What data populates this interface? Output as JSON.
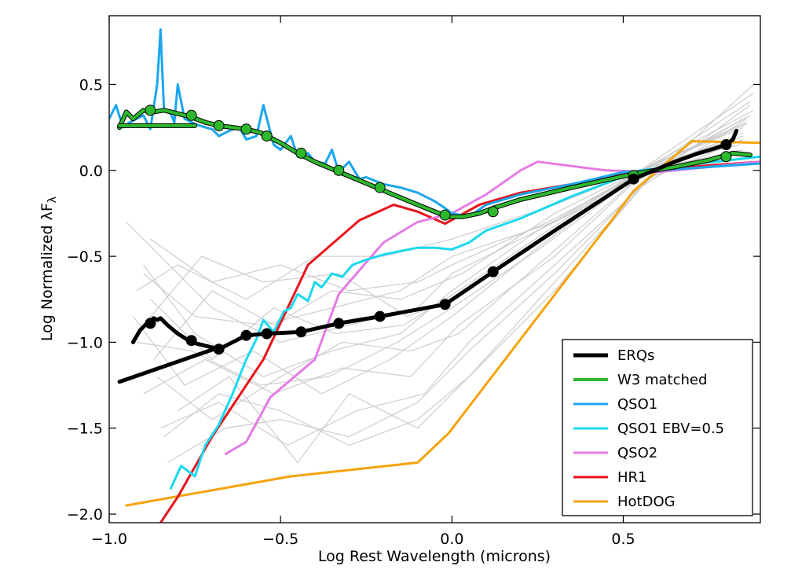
{
  "chart_data": {
    "type": "line",
    "title": "",
    "xlabel": "Log Rest Wavelength (microns)",
    "ylabel_main": "Log Normalized λF",
    "ylabel_sub": "λ",
    "xlim": [
      -1.0,
      0.9
    ],
    "ylim": [
      -2.05,
      0.9
    ],
    "xticks": [
      -1.0,
      -0.5,
      0.0,
      0.5
    ],
    "xtick_labels": [
      "−1.0",
      "−0.5",
      "0.0",
      "0.5"
    ],
    "yticks": [
      -2.0,
      -1.5,
      -1.0,
      -0.5,
      0.0,
      0.5
    ],
    "ytick_labels": [
      "−2.0",
      "−1.5",
      "−1.0",
      "−0.5",
      "0.0",
      "0.5"
    ],
    "grid": false,
    "legend_position": "bottom-right",
    "series": [
      {
        "name": "HotDOG",
        "color": "#f5a30a",
        "width": 3,
        "x": [
          -0.95,
          -0.47,
          -0.1,
          -0.01,
          0.47,
          0.53,
          0.7,
          0.9
        ],
        "y": [
          -1.95,
          -1.78,
          -1.7,
          -1.53,
          -0.28,
          -0.12,
          0.17,
          0.16
        ]
      },
      {
        "name": "HR1",
        "color": "#e8141b",
        "width": 3,
        "x": [
          -0.9,
          -0.8,
          -0.7,
          -0.55,
          -0.42,
          -0.27,
          -0.17,
          -0.1,
          -0.02,
          0.08,
          0.2,
          0.35,
          0.55,
          0.9
        ],
        "y": [
          -2.2,
          -1.9,
          -1.55,
          -1.1,
          -0.55,
          -0.29,
          -0.2,
          -0.24,
          -0.31,
          -0.2,
          -0.13,
          -0.08,
          0.0,
          0.05
        ]
      },
      {
        "name": "QSO2",
        "color": "#e57ce5",
        "width": 3,
        "x": [
          -0.66,
          -0.6,
          -0.53,
          -0.4,
          -0.33,
          -0.2,
          -0.1,
          0.0,
          0.1,
          0.2,
          0.25,
          0.45,
          0.6,
          0.9
        ],
        "y": [
          -1.65,
          -1.58,
          -1.32,
          -1.1,
          -0.72,
          -0.42,
          -0.3,
          -0.25,
          -0.14,
          0.0,
          0.05,
          0.0,
          -0.01,
          0.05
        ]
      },
      {
        "name": "QSO1 EBV=0.5",
        "color": "#1ad8f0",
        "width": 3,
        "x": [
          -0.82,
          -0.79,
          -0.75,
          -0.72,
          -0.68,
          -0.64,
          -0.6,
          -0.57,
          -0.55,
          -0.52,
          -0.49,
          -0.47,
          -0.45,
          -0.42,
          -0.4,
          -0.38,
          -0.35,
          -0.32,
          -0.29,
          -0.25,
          -0.2,
          -0.15,
          -0.1,
          -0.05,
          0.0,
          0.05,
          0.1,
          0.2,
          0.35,
          0.55,
          0.9
        ],
        "y": [
          -1.85,
          -1.72,
          -1.78,
          -1.6,
          -1.48,
          -1.3,
          -1.1,
          -0.98,
          -0.87,
          -0.94,
          -0.82,
          -0.8,
          -0.72,
          -0.76,
          -0.65,
          -0.68,
          -0.6,
          -0.62,
          -0.55,
          -0.52,
          -0.49,
          -0.47,
          -0.45,
          -0.45,
          -0.46,
          -0.42,
          -0.35,
          -0.28,
          -0.15,
          0.0,
          0.08
        ]
      },
      {
        "name": "QSO1",
        "color": "#1aa6ee",
        "width": 3,
        "x": [
          -1.0,
          -0.98,
          -0.96,
          -0.94,
          -0.92,
          -0.9,
          -0.88,
          -0.86,
          -0.85,
          -0.84,
          -0.82,
          -0.81,
          -0.8,
          -0.78,
          -0.75,
          -0.72,
          -0.7,
          -0.68,
          -0.65,
          -0.62,
          -0.6,
          -0.57,
          -0.55,
          -0.52,
          -0.5,
          -0.47,
          -0.45,
          -0.42,
          -0.4,
          -0.37,
          -0.35,
          -0.33,
          -0.3,
          -0.27,
          -0.25,
          -0.2,
          -0.15,
          -0.1,
          -0.05,
          -0.02,
          0.0,
          0.05,
          0.1,
          0.2,
          0.35,
          0.5,
          0.6,
          0.9
        ],
        "y": [
          0.3,
          0.38,
          0.25,
          0.28,
          0.3,
          0.32,
          0.24,
          0.5,
          0.82,
          0.35,
          0.33,
          0.28,
          0.5,
          0.3,
          0.27,
          0.25,
          0.24,
          0.2,
          0.23,
          0.25,
          0.18,
          0.2,
          0.38,
          0.15,
          0.12,
          0.2,
          0.08,
          0.1,
          0.05,
          0.04,
          0.12,
          -0.01,
          0.05,
          -0.05,
          -0.04,
          -0.08,
          -0.1,
          -0.13,
          -0.18,
          -0.22,
          -0.25,
          -0.27,
          -0.2,
          -0.14,
          -0.08,
          -0.01,
          0.0,
          0.04
        ]
      },
      {
        "name": "W3 matched",
        "color": "#2eb82e",
        "width": 4,
        "x": [
          -0.97,
          -0.95,
          -0.93,
          -0.9,
          -0.87,
          -0.84,
          -0.8,
          -0.76,
          -0.72,
          -0.68,
          -0.64,
          -0.6,
          -0.56,
          -0.54,
          -0.5,
          -0.45,
          -0.4,
          -0.34,
          -0.28,
          -0.22,
          -0.16,
          -0.1,
          -0.05,
          -0.01,
          0.03,
          0.08,
          0.12,
          0.2,
          0.35,
          0.53,
          0.65,
          0.75,
          0.82,
          0.87
        ],
        "y": [
          0.25,
          0.34,
          0.3,
          0.35,
          0.34,
          0.35,
          0.33,
          0.31,
          0.28,
          0.26,
          0.25,
          0.24,
          0.22,
          0.2,
          0.16,
          0.1,
          0.05,
          0.0,
          -0.05,
          -0.1,
          -0.15,
          -0.2,
          -0.24,
          -0.27,
          -0.27,
          -0.25,
          -0.22,
          -0.17,
          -0.1,
          -0.02,
          0.02,
          0.06,
          0.1,
          0.09
        ]
      },
      {
        "name": "W3 matched (extension)",
        "color": "#2eb82e",
        "width": 4,
        "x": [
          -0.97,
          -0.75
        ],
        "y": [
          0.26,
          0.26
        ]
      },
      {
        "name": "ERQs",
        "color": "#000000",
        "width": 5,
        "x": [
          -0.93,
          -0.91,
          -0.89,
          -0.88,
          -0.87,
          -0.86,
          -0.85,
          -0.83,
          -0.8,
          -0.76,
          -0.72,
          -0.68,
          -0.6,
          -0.54,
          -0.44,
          -0.33,
          -0.21,
          -0.02,
          0.12,
          0.3,
          0.53,
          0.65,
          0.72,
          0.77,
          0.8,
          0.82,
          0.83
        ],
        "y": [
          -1.0,
          -0.93,
          -0.89,
          -0.88,
          -0.86,
          -0.87,
          -0.86,
          -0.9,
          -0.95,
          -1.0,
          -1.02,
          -1.04,
          -0.96,
          -0.95,
          -0.94,
          -0.89,
          -0.85,
          -0.78,
          -0.59,
          -0.35,
          -0.05,
          0.05,
          0.1,
          0.13,
          0.15,
          0.18,
          0.23
        ]
      },
      {
        "name": "ERQs (extension)",
        "color": "#000000",
        "width": 5,
        "x": [
          -0.97,
          -0.68
        ],
        "y": [
          -1.23,
          -1.03
        ]
      }
    ],
    "markers": [
      {
        "series": "W3 matched",
        "color": "#2eb82e",
        "x": [
          -0.88,
          -0.76,
          -0.68,
          -0.6,
          -0.54,
          -0.44,
          -0.33,
          -0.21,
          -0.02,
          0.12,
          0.53,
          0.8
        ],
        "y": [
          0.35,
          0.32,
          0.26,
          0.24,
          0.2,
          0.1,
          0.0,
          -0.1,
          -0.26,
          -0.24,
          -0.03,
          0.08
        ]
      },
      {
        "series": "ERQs",
        "color": "#000000",
        "x": [
          -0.88,
          -0.76,
          -0.68,
          -0.6,
          -0.54,
          -0.44,
          -0.33,
          -0.21,
          -0.02,
          0.12,
          0.53,
          0.8
        ],
        "y": [
          -0.89,
          -0.99,
          -1.04,
          -0.96,
          -0.95,
          -0.94,
          -0.89,
          -0.85,
          -0.78,
          -0.59,
          -0.05,
          0.15
        ]
      }
    ],
    "background_series": [
      {
        "x": [
          -0.95,
          -0.7,
          -0.5,
          -0.3,
          -0.1,
          0.0,
          0.2,
          0.55,
          0.85
        ],
        "y": [
          -0.3,
          -0.8,
          -1.0,
          -0.9,
          -0.8,
          -0.6,
          -0.4,
          -0.05,
          0.3
        ]
      },
      {
        "x": [
          -0.9,
          -0.75,
          -0.55,
          -0.35,
          -0.15,
          0.0,
          0.25,
          0.55,
          0.85
        ],
        "y": [
          -0.55,
          -0.95,
          -1.2,
          -1.05,
          -0.95,
          -0.7,
          -0.35,
          0.0,
          0.25
        ]
      },
      {
        "x": [
          -0.92,
          -0.8,
          -0.6,
          -0.4,
          -0.2,
          0.0,
          0.3,
          0.55,
          0.88
        ],
        "y": [
          -0.7,
          -0.55,
          -0.75,
          -0.5,
          -0.5,
          -0.4,
          -0.2,
          0.0,
          0.45
        ]
      },
      {
        "x": [
          -0.9,
          -0.72,
          -0.52,
          -0.32,
          -0.12,
          0.02,
          0.3,
          0.58,
          0.85
        ],
        "y": [
          -1.3,
          -1.1,
          -1.3,
          -1.15,
          -1.2,
          -0.9,
          -0.5,
          0.02,
          0.2
        ]
      },
      {
        "x": [
          -0.85,
          -0.68,
          -0.48,
          -0.28,
          -0.08,
          0.05,
          0.3,
          0.55,
          0.86
        ],
        "y": [
          -1.5,
          -1.35,
          -1.6,
          -1.4,
          -1.3,
          -1.0,
          -0.55,
          -0.1,
          0.3
        ]
      },
      {
        "x": [
          -0.88,
          -0.7,
          -0.5,
          -0.3,
          -0.1,
          0.0,
          0.28,
          0.55,
          0.87
        ],
        "y": [
          -0.4,
          -0.65,
          -0.55,
          -0.7,
          -0.65,
          -0.55,
          -0.3,
          -0.02,
          0.4
        ]
      },
      {
        "x": [
          -0.93,
          -0.78,
          -0.58,
          -0.38,
          -0.18,
          0.0,
          0.25,
          0.56,
          0.84
        ],
        "y": [
          -0.85,
          -1.25,
          -1.05,
          -1.3,
          -1.1,
          -0.85,
          -0.45,
          0.01,
          0.15
        ]
      },
      {
        "x": [
          -0.87,
          -0.7,
          -0.52,
          -0.35,
          -0.15,
          0.03,
          0.3,
          0.55,
          0.88
        ],
        "y": [
          -1.1,
          -0.7,
          -0.9,
          -0.7,
          -0.75,
          -0.6,
          -0.25,
          0.0,
          0.35
        ]
      },
      {
        "x": [
          -0.83,
          -0.66,
          -0.5,
          -0.3,
          -0.1,
          0.05,
          0.3,
          0.57,
          0.85
        ],
        "y": [
          -1.7,
          -1.5,
          -1.45,
          -1.55,
          -1.35,
          -1.05,
          -0.6,
          -0.05,
          0.18
        ]
      },
      {
        "x": [
          -0.9,
          -0.73,
          -0.55,
          -0.33,
          -0.13,
          0.0,
          0.27,
          0.55,
          0.86
        ],
        "y": [
          -0.9,
          -0.5,
          -0.65,
          -0.6,
          -0.85,
          -0.75,
          -0.4,
          0.0,
          0.28
        ]
      },
      {
        "x": [
          -0.86,
          -0.7,
          -0.5,
          -0.32,
          -0.12,
          0.02,
          0.28,
          0.55,
          0.87
        ],
        "y": [
          -1.2,
          -1.45,
          -1.2,
          -1.0,
          -1.05,
          -0.95,
          -0.5,
          -0.03,
          0.32
        ]
      },
      {
        "x": [
          -0.9,
          -0.75,
          -0.55,
          -0.35,
          -0.15,
          0.0,
          0.3,
          0.56,
          0.85
        ],
        "y": [
          -0.6,
          -0.85,
          -0.9,
          -0.8,
          -0.7,
          -0.5,
          -0.3,
          0.0,
          0.12
        ]
      },
      {
        "x": [
          -0.8,
          -0.65,
          -0.45,
          -0.3,
          -0.1,
          0.05,
          0.3,
          0.56,
          0.88
        ],
        "y": [
          -1.4,
          -1.2,
          -1.7,
          -1.3,
          -1.5,
          -1.2,
          -0.7,
          -0.08,
          0.5
        ]
      },
      {
        "x": [
          -0.92,
          -0.76,
          -0.56,
          -0.36,
          -0.16,
          0.0,
          0.26,
          0.55,
          0.85
        ],
        "y": [
          -1.0,
          -1.05,
          -1.25,
          -1.2,
          -1.0,
          -0.8,
          -0.45,
          -0.02,
          0.22
        ]
      },
      {
        "x": [
          -0.88,
          -0.7,
          -0.52,
          -0.34,
          -0.14,
          0.02,
          0.28,
          0.55,
          0.86
        ],
        "y": [
          -0.75,
          -1.1,
          -0.8,
          -0.95,
          -0.9,
          -0.7,
          -0.35,
          0.0,
          0.27
        ]
      },
      {
        "x": [
          -0.84,
          -0.68,
          -0.5,
          -0.3,
          -0.1,
          0.05,
          0.3,
          0.57,
          0.87
        ],
        "y": [
          -1.55,
          -1.3,
          -1.4,
          -1.6,
          -1.45,
          -1.2,
          -0.65,
          -0.06,
          0.38
        ]
      }
    ],
    "legend": [
      {
        "label": "ERQs",
        "color": "#000000",
        "width": 5
      },
      {
        "label": "W3 matched",
        "color": "#2eb82e",
        "width": 4
      },
      {
        "label": "QSO1",
        "color": "#1aa6ee",
        "width": 3
      },
      {
        "label": "QSO1 EBV=0.5",
        "color": "#1ad8f0",
        "width": 3
      },
      {
        "label": "QSO2",
        "color": "#e57ce5",
        "width": 3
      },
      {
        "label": "HR1",
        "color": "#e8141b",
        "width": 3
      },
      {
        "label": "HotDOG",
        "color": "#f5a30a",
        "width": 3
      }
    ]
  }
}
